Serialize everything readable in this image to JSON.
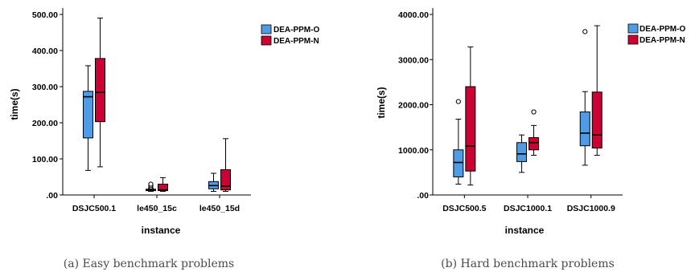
{
  "colors": {
    "series_o": "#4f9be6",
    "series_n": "#cc0033"
  },
  "chart_data": [
    {
      "type": "boxplot",
      "caption": "(a) Easy benchmark problems",
      "xlabel": "instance",
      "ylabel": "time(s)",
      "ylim": [
        0,
        500
      ],
      "yticks": [
        0,
        100,
        200,
        300,
        400,
        500
      ],
      "ytick_labels": [
        ".00",
        "100.00",
        "200.00",
        "300.00",
        "400.00",
        "500.00"
      ],
      "categories": [
        "DSJC500.1",
        "le450_15c",
        "le450_15d"
      ],
      "legend_position": "top-right",
      "series": [
        {
          "name": "DEA-PPM-O",
          "boxes": [
            {
              "min": 68,
              "q1": 158,
              "median": 272,
              "q3": 287,
              "max": 358,
              "outliers": []
            },
            {
              "min": 10,
              "q1": 12,
              "median": 14,
              "q3": 16,
              "max": 18,
              "outliers": [
                22,
                26,
                30
              ]
            },
            {
              "min": 10,
              "q1": 17,
              "median": 26,
              "q3": 37,
              "max": 60,
              "outliers": []
            }
          ]
        },
        {
          "name": "DEA-PPM-N",
          "boxes": [
            {
              "min": 78,
              "q1": 203,
              "median": 284,
              "q3": 378,
              "max": 490,
              "outliers": []
            },
            {
              "min": 10,
              "q1": 12,
              "median": 14,
              "q3": 30,
              "max": 48,
              "outliers": []
            },
            {
              "min": 10,
              "q1": 14,
              "median": 24,
              "q3": 70,
              "max": 156,
              "outliers": []
            }
          ]
        }
      ]
    },
    {
      "type": "boxplot",
      "caption": "(b) Hard benchmark problems",
      "xlabel": "instance",
      "ylabel": "time(s)",
      "ylim": [
        0,
        4000
      ],
      "yticks": [
        0,
        1000,
        2000,
        3000,
        4000
      ],
      "ytick_labels": [
        ".00",
        "1000.00",
        "2000.00",
        "3000.00",
        "4000.00"
      ],
      "categories": [
        "DSJC500.5",
        "DSJC1000.1",
        "DSJC1000.9"
      ],
      "legend_position": "top-right",
      "series": [
        {
          "name": "DEA-PPM-O",
          "boxes": [
            {
              "min": 240,
              "q1": 400,
              "median": 720,
              "q3": 1000,
              "max": 1680,
              "outliers": [
                2070
              ]
            },
            {
              "min": 500,
              "q1": 740,
              "median": 910,
              "q3": 1160,
              "max": 1330,
              "outliers": []
            },
            {
              "min": 660,
              "q1": 1090,
              "median": 1370,
              "q3": 1840,
              "max": 2290,
              "outliers": [
                3620
              ]
            }
          ]
        },
        {
          "name": "DEA-PPM-N",
          "boxes": [
            {
              "min": 220,
              "q1": 530,
              "median": 1080,
              "q3": 2400,
              "max": 3280,
              "outliers": []
            },
            {
              "min": 880,
              "q1": 1000,
              "median": 1160,
              "q3": 1270,
              "max": 1540,
              "outliers": [
                1840
              ]
            },
            {
              "min": 880,
              "q1": 1040,
              "median": 1330,
              "q3": 2280,
              "max": 3750,
              "outliers": []
            }
          ]
        }
      ]
    }
  ]
}
